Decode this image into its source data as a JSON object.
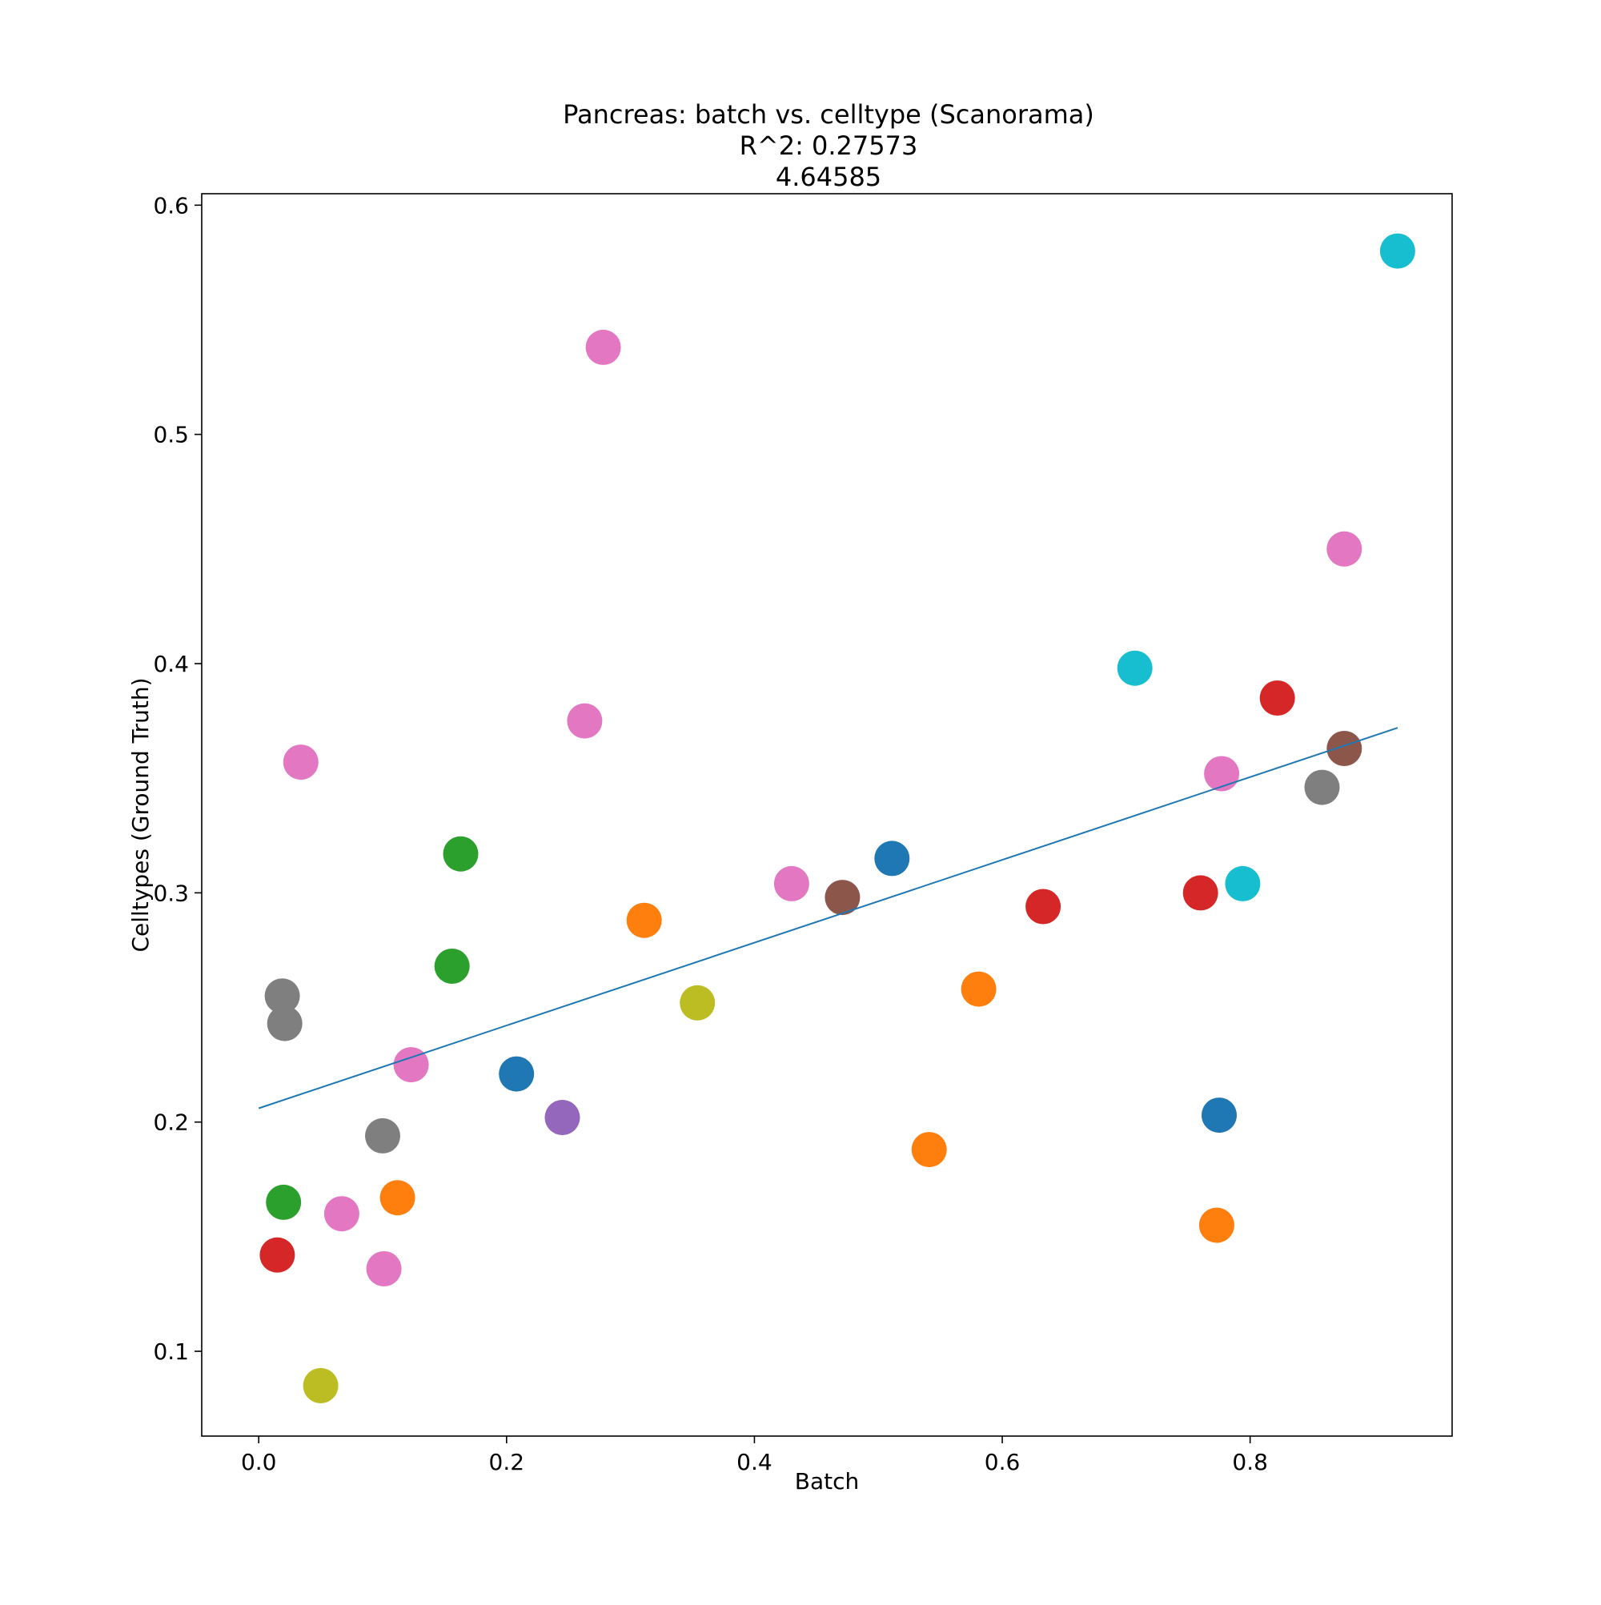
{
  "chart_data": {
    "type": "scatter",
    "title_lines": [
      "Pancreas: batch vs. celltype (Scanorama)",
      "R^2: 0.27573",
      "4.64585"
    ],
    "xlabel": "Batch",
    "ylabel": "Celltypes (Ground Truth)",
    "xlim": [
      -0.046,
      0.963
    ],
    "ylim": [
      0.063,
      0.605
    ],
    "xticks": [
      0.0,
      0.2,
      0.4,
      0.6,
      0.8
    ],
    "xtick_labels": [
      "0.0",
      "0.2",
      "0.4",
      "0.6",
      "0.8"
    ],
    "yticks": [
      0.1,
      0.2,
      0.3,
      0.4,
      0.5,
      0.6
    ],
    "ytick_labels": [
      "0.1",
      "0.2",
      "0.3",
      "0.4",
      "0.5",
      "0.6"
    ],
    "grid": false,
    "legend": "none",
    "palette": {
      "blue": "#1f77b4",
      "orange": "#ff7f0e",
      "green": "#2ca02c",
      "red": "#d62728",
      "purple": "#9467bd",
      "brown": "#8c564b",
      "pink": "#e377c2",
      "gray": "#7f7f7f",
      "olive": "#bcbd22",
      "cyan": "#17becf"
    },
    "points": [
      {
        "x": 0.919,
        "y": 0.58,
        "color": "cyan"
      },
      {
        "x": 0.278,
        "y": 0.538,
        "color": "pink"
      },
      {
        "x": 0.876,
        "y": 0.45,
        "color": "pink"
      },
      {
        "x": 0.707,
        "y": 0.398,
        "color": "cyan"
      },
      {
        "x": 0.822,
        "y": 0.385,
        "color": "red"
      },
      {
        "x": 0.263,
        "y": 0.375,
        "color": "pink"
      },
      {
        "x": 0.876,
        "y": 0.363,
        "color": "brown"
      },
      {
        "x": 0.034,
        "y": 0.357,
        "color": "pink"
      },
      {
        "x": 0.777,
        "y": 0.352,
        "color": "pink"
      },
      {
        "x": 0.858,
        "y": 0.346,
        "color": "gray"
      },
      {
        "x": 0.163,
        "y": 0.317,
        "color": "green"
      },
      {
        "x": 0.511,
        "y": 0.315,
        "color": "blue"
      },
      {
        "x": 0.43,
        "y": 0.304,
        "color": "pink"
      },
      {
        "x": 0.794,
        "y": 0.304,
        "color": "cyan"
      },
      {
        "x": 0.76,
        "y": 0.3,
        "color": "red"
      },
      {
        "x": 0.471,
        "y": 0.298,
        "color": "brown"
      },
      {
        "x": 0.633,
        "y": 0.294,
        "color": "red"
      },
      {
        "x": 0.311,
        "y": 0.288,
        "color": "orange"
      },
      {
        "x": 0.156,
        "y": 0.268,
        "color": "green"
      },
      {
        "x": 0.581,
        "y": 0.258,
        "color": "orange"
      },
      {
        "x": 0.019,
        "y": 0.255,
        "color": "gray"
      },
      {
        "x": 0.354,
        "y": 0.252,
        "color": "olive"
      },
      {
        "x": 0.021,
        "y": 0.243,
        "color": "gray"
      },
      {
        "x": 0.123,
        "y": 0.225,
        "color": "pink"
      },
      {
        "x": 0.208,
        "y": 0.221,
        "color": "blue"
      },
      {
        "x": 0.775,
        "y": 0.203,
        "color": "blue"
      },
      {
        "x": 0.245,
        "y": 0.202,
        "color": "purple"
      },
      {
        "x": 0.1,
        "y": 0.194,
        "color": "gray"
      },
      {
        "x": 0.541,
        "y": 0.188,
        "color": "orange"
      },
      {
        "x": 0.112,
        "y": 0.167,
        "color": "orange"
      },
      {
        "x": 0.02,
        "y": 0.165,
        "color": "green"
      },
      {
        "x": 0.067,
        "y": 0.16,
        "color": "pink"
      },
      {
        "x": 0.773,
        "y": 0.155,
        "color": "orange"
      },
      {
        "x": 0.015,
        "y": 0.142,
        "color": "red"
      },
      {
        "x": 0.101,
        "y": 0.136,
        "color": "pink"
      },
      {
        "x": 0.05,
        "y": 0.085,
        "color": "olive"
      }
    ],
    "fit_line": {
      "x": [
        0.0,
        0.919
      ],
      "y": [
        0.206,
        0.372
      ],
      "color": "#1f77b4"
    }
  }
}
